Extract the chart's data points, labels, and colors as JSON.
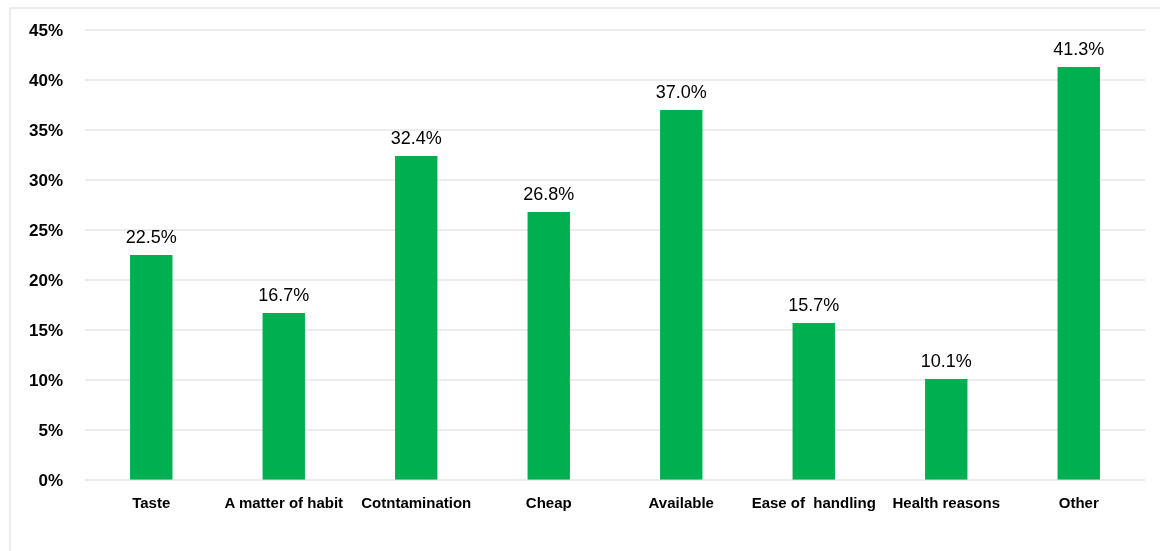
{
  "chart_data": {
    "type": "bar",
    "categories": [
      "Taste",
      "A matter of habit",
      "Cotntamination",
      "Cheap",
      "Available",
      "Ease of  handling",
      "Health reasons",
      "Other"
    ],
    "values": [
      22.5,
      16.7,
      32.4,
      26.8,
      37.0,
      15.7,
      10.1,
      41.3
    ],
    "value_labels": [
      "22.5%",
      "16.7%",
      "32.4%",
      "26.8%",
      "37.0%",
      "15.7%",
      "10.1%",
      "41.3%"
    ],
    "color": "#00b050",
    "ylim": [
      0,
      45
    ],
    "yticks": [
      {
        "value": 0,
        "label": "0%"
      },
      {
        "value": 5,
        "label": "5%"
      },
      {
        "value": 10,
        "label": "10%"
      },
      {
        "value": 15,
        "label": "15%"
      },
      {
        "value": 20,
        "label": "20%"
      },
      {
        "value": 25,
        "label": "25%"
      },
      {
        "value": 30,
        "label": "30%"
      },
      {
        "value": 35,
        "label": "35%"
      },
      {
        "value": 40,
        "label": "40%"
      },
      {
        "value": 45,
        "label": "45%"
      }
    ],
    "grid": "y"
  }
}
